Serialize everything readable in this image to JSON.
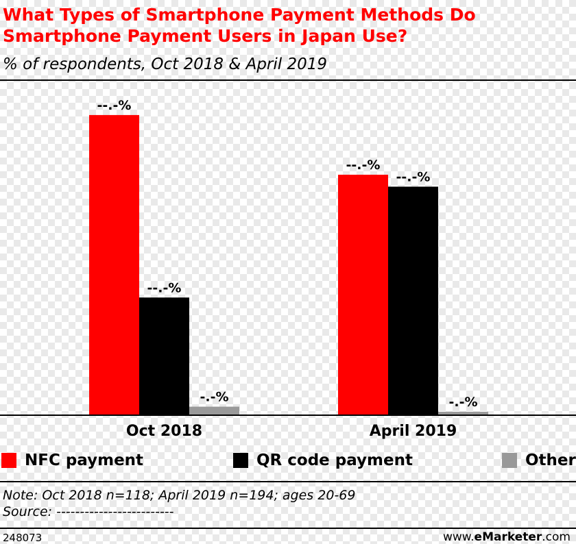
{
  "header": {
    "title": "What Types of Smartphone Payment Methods Do Smartphone Payment Users in Japan Use?",
    "subtitle": "% of respondents, Oct 2018 & April 2019"
  },
  "legend": {
    "items": [
      {
        "label": "NFC payment",
        "color": "#ff0000"
      },
      {
        "label": "QR code payment",
        "color": "#000000"
      },
      {
        "label": "Other",
        "color": "#999999"
      }
    ]
  },
  "footer": {
    "note": "Note: Oct 2018 n=118; April 2019 n=194; ages 20-69",
    "source": "Source: -------------------------",
    "chart_id": "248073",
    "credit_prefix": "www.",
    "credit_brand": "eMarketer",
    "credit_suffix": ".com"
  },
  "colors": {
    "accent": "#ff0000",
    "nfc": "#ff0000",
    "qr": "#000000",
    "other": "#999999"
  },
  "chart_data": {
    "type": "bar",
    "categories": [
      "Oct 2018",
      "April 2019"
    ],
    "series": [
      {
        "name": "NFC payment",
        "color": "#ff0000",
        "values": [
          88,
          70.5
        ],
        "labels": [
          "--.-%",
          "--.-%"
        ]
      },
      {
        "name": "QR code payment",
        "color": "#000000",
        "values": [
          34.5,
          67
        ],
        "labels": [
          "--.-%",
          "--.-%"
        ]
      },
      {
        "name": "Other",
        "color": "#999999",
        "values": [
          2.5,
          1
        ],
        "labels": [
          "-.-%",
          "-.-%"
        ]
      }
    ],
    "ylim": [
      0,
      92
    ],
    "grid": false,
    "legend_position": "bottom"
  }
}
